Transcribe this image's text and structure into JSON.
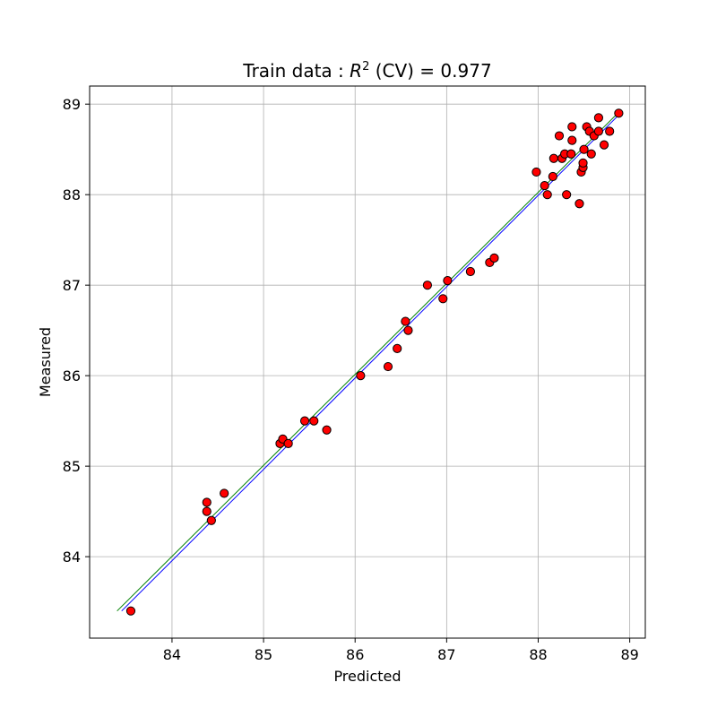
{
  "chart_data": {
    "type": "scatter",
    "title": "Train data : R² (CV) = 0.977",
    "title_parts": {
      "prefix": "Train data : ",
      "var": "R",
      "sup": "2",
      "suffix": " (CV) = 0.977"
    },
    "xlabel": "Predicted",
    "ylabel": "Measured",
    "xlim": [
      83.1,
      89.17
    ],
    "ylim": [
      83.1,
      89.2
    ],
    "xticks": [
      84,
      85,
      86,
      87,
      88,
      89
    ],
    "yticks": [
      84,
      85,
      86,
      87,
      88,
      89
    ],
    "grid": true,
    "marker_color": "#ff0000",
    "marker_edge": "#000000",
    "points": [
      [
        83.55,
        83.4
      ],
      [
        84.38,
        84.6
      ],
      [
        84.38,
        84.5
      ],
      [
        84.43,
        84.4
      ],
      [
        84.57,
        84.7
      ],
      [
        85.18,
        85.25
      ],
      [
        85.21,
        85.3
      ],
      [
        85.27,
        85.25
      ],
      [
        85.45,
        85.5
      ],
      [
        85.55,
        85.5
      ],
      [
        85.69,
        85.4
      ],
      [
        86.06,
        86.0
      ],
      [
        86.36,
        86.1
      ],
      [
        86.46,
        86.3
      ],
      [
        86.55,
        86.6
      ],
      [
        86.58,
        86.5
      ],
      [
        86.79,
        87.0
      ],
      [
        86.96,
        86.85
      ],
      [
        87.01,
        87.05
      ],
      [
        87.26,
        87.15
      ],
      [
        87.47,
        87.25
      ],
      [
        87.52,
        87.3
      ],
      [
        87.98,
        88.25
      ],
      [
        88.07,
        88.1
      ],
      [
        88.1,
        88.0
      ],
      [
        88.16,
        88.2
      ],
      [
        88.17,
        88.4
      ],
      [
        88.23,
        88.65
      ],
      [
        88.26,
        88.4
      ],
      [
        88.29,
        88.45
      ],
      [
        88.31,
        88.0
      ],
      [
        88.36,
        88.45
      ],
      [
        88.37,
        88.6
      ],
      [
        88.37,
        88.75
      ],
      [
        88.45,
        87.9
      ],
      [
        88.47,
        88.25
      ],
      [
        88.49,
        88.3
      ],
      [
        88.49,
        88.35
      ],
      [
        88.5,
        88.5
      ],
      [
        88.53,
        88.75
      ],
      [
        88.56,
        88.7
      ],
      [
        88.58,
        88.45
      ],
      [
        88.61,
        88.65
      ],
      [
        88.66,
        88.7
      ],
      [
        88.66,
        88.85
      ],
      [
        88.72,
        88.55
      ],
      [
        88.78,
        88.7
      ],
      [
        88.88,
        88.9
      ]
    ],
    "lines": [
      {
        "color": "#0000ff",
        "from": [
          83.45,
          83.4
        ],
        "to": [
          88.88,
          88.88
        ]
      },
      {
        "color": "#008000",
        "from": [
          83.4,
          83.4
        ],
        "to": [
          88.85,
          88.88
        ]
      }
    ]
  }
}
